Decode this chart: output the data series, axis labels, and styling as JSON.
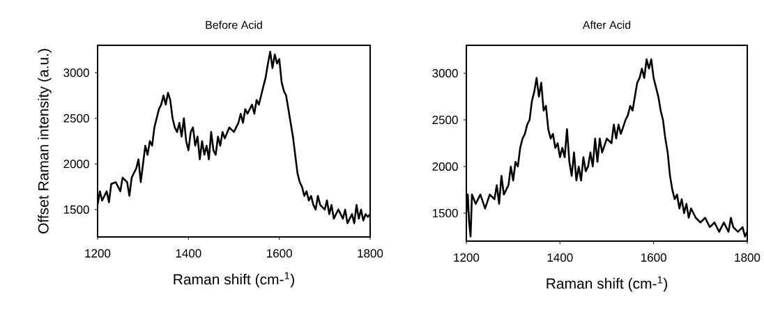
{
  "chart_data": [
    {
      "type": "line",
      "title": "Before Acid",
      "xlabel": "Raman shift (cm-$^{1}$)",
      "ylabel": "Offset Raman intensity (a.u.)",
      "color": "#000000",
      "xlim": [
        1200,
        1800
      ],
      "ylim": [
        1200,
        3300
      ],
      "xticks": [
        1200,
        1400,
        1600,
        1800
      ],
      "yticks": [
        1500,
        2000,
        2500,
        3000
      ],
      "x": [
        1200,
        1205,
        1210,
        1220,
        1225,
        1230,
        1240,
        1250,
        1255,
        1265,
        1270,
        1275,
        1285,
        1290,
        1295,
        1300,
        1305,
        1310,
        1315,
        1320,
        1325,
        1330,
        1335,
        1340,
        1345,
        1350,
        1355,
        1360,
        1365,
        1370,
        1375,
        1380,
        1385,
        1390,
        1395,
        1400,
        1405,
        1410,
        1415,
        1420,
        1425,
        1430,
        1435,
        1440,
        1445,
        1450,
        1455,
        1460,
        1465,
        1470,
        1475,
        1480,
        1490,
        1500,
        1510,
        1515,
        1520,
        1525,
        1530,
        1540,
        1545,
        1550,
        1555,
        1560,
        1565,
        1570,
        1575,
        1580,
        1585,
        1590,
        1595,
        1600,
        1605,
        1610,
        1615,
        1620,
        1625,
        1630,
        1635,
        1640,
        1645,
        1650,
        1655,
        1660,
        1665,
        1670,
        1675,
        1680,
        1685,
        1690,
        1700,
        1705,
        1710,
        1715,
        1720,
        1730,
        1740,
        1745,
        1750,
        1760,
        1765,
        1770,
        1775,
        1780,
        1785,
        1790,
        1795,
        1800
      ],
      "values": [
        1550,
        1700,
        1600,
        1700,
        1580,
        1780,
        1800,
        1700,
        1850,
        1800,
        1650,
        1850,
        1950,
        2050,
        1800,
        2000,
        2200,
        2100,
        2250,
        2200,
        2400,
        2500,
        2600,
        2650,
        2750,
        2650,
        2780,
        2700,
        2500,
        2400,
        2350,
        2450,
        2300,
        2500,
        2250,
        2150,
        2350,
        2400,
        2200,
        2300,
        2050,
        2250,
        2100,
        2200,
        2050,
        2350,
        2150,
        2100,
        2300,
        2200,
        2350,
        2280,
        2400,
        2350,
        2450,
        2550,
        2450,
        2600,
        2550,
        2650,
        2550,
        2700,
        2650,
        2750,
        2850,
        2950,
        3100,
        3230,
        3050,
        3200,
        3100,
        3150,
        2900,
        2800,
        2750,
        2600,
        2450,
        2300,
        2100,
        1900,
        1800,
        1750,
        1650,
        1700,
        1600,
        1650,
        1550,
        1500,
        1650,
        1550,
        1500,
        1600,
        1450,
        1550,
        1400,
        1500,
        1400,
        1500,
        1350,
        1450,
        1350,
        1550,
        1400,
        1500,
        1380,
        1450,
        1420,
        1450
      ]
    },
    {
      "type": "line",
      "title": "After Acid",
      "xlabel": "Raman shift (cm-$^{1}$)",
      "color": "#000000",
      "xlim": [
        1200,
        1800
      ],
      "ylim": [
        1200,
        3300
      ],
      "xticks": [
        1200,
        1400,
        1600,
        1800
      ],
      "yticks": [
        1500,
        2000,
        2500,
        3000
      ],
      "x": [
        1200,
        1203,
        1206,
        1209,
        1212,
        1220,
        1230,
        1240,
        1250,
        1260,
        1265,
        1270,
        1275,
        1280,
        1290,
        1295,
        1300,
        1305,
        1310,
        1315,
        1320,
        1325,
        1330,
        1335,
        1340,
        1345,
        1350,
        1355,
        1360,
        1365,
        1370,
        1375,
        1380,
        1385,
        1390,
        1395,
        1400,
        1405,
        1410,
        1415,
        1420,
        1425,
        1430,
        1435,
        1440,
        1445,
        1450,
        1455,
        1460,
        1465,
        1470,
        1475,
        1480,
        1485,
        1490,
        1500,
        1510,
        1515,
        1520,
        1525,
        1530,
        1540,
        1545,
        1550,
        1555,
        1560,
        1565,
        1570,
        1575,
        1580,
        1585,
        1590,
        1595,
        1600,
        1605,
        1610,
        1615,
        1620,
        1625,
        1630,
        1635,
        1640,
        1645,
        1650,
        1655,
        1660,
        1665,
        1670,
        1675,
        1680,
        1690,
        1700,
        1710,
        1720,
        1730,
        1740,
        1750,
        1760,
        1765,
        1770,
        1780,
        1790,
        1795,
        1800
      ],
      "values": [
        1500,
        1700,
        1400,
        1250,
        1700,
        1600,
        1700,
        1550,
        1700,
        1650,
        1800,
        1600,
        1900,
        1700,
        1800,
        2000,
        1850,
        2050,
        2000,
        2200,
        2300,
        2350,
        2450,
        2500,
        2700,
        2800,
        2950,
        2750,
        2900,
        2600,
        2650,
        2400,
        2300,
        2350,
        2200,
        2250,
        2100,
        2200,
        2100,
        2400,
        2050,
        1900,
        2150,
        1850,
        2000,
        1850,
        2100,
        1950,
        2000,
        2150,
        2000,
        2300,
        2050,
        2300,
        2150,
        2300,
        2250,
        2450,
        2300,
        2450,
        2350,
        2500,
        2550,
        2650,
        2600,
        2750,
        2900,
        2950,
        3050,
        2950,
        3150,
        3050,
        3150,
        2950,
        2850,
        2750,
        2600,
        2500,
        2300,
        2150,
        1900,
        1750,
        1650,
        1700,
        1550,
        1650,
        1500,
        1600,
        1450,
        1550,
        1450,
        1400,
        1450,
        1350,
        1400,
        1300,
        1400,
        1300,
        1450,
        1350,
        1300,
        1350,
        1250,
        1300
      ]
    }
  ]
}
